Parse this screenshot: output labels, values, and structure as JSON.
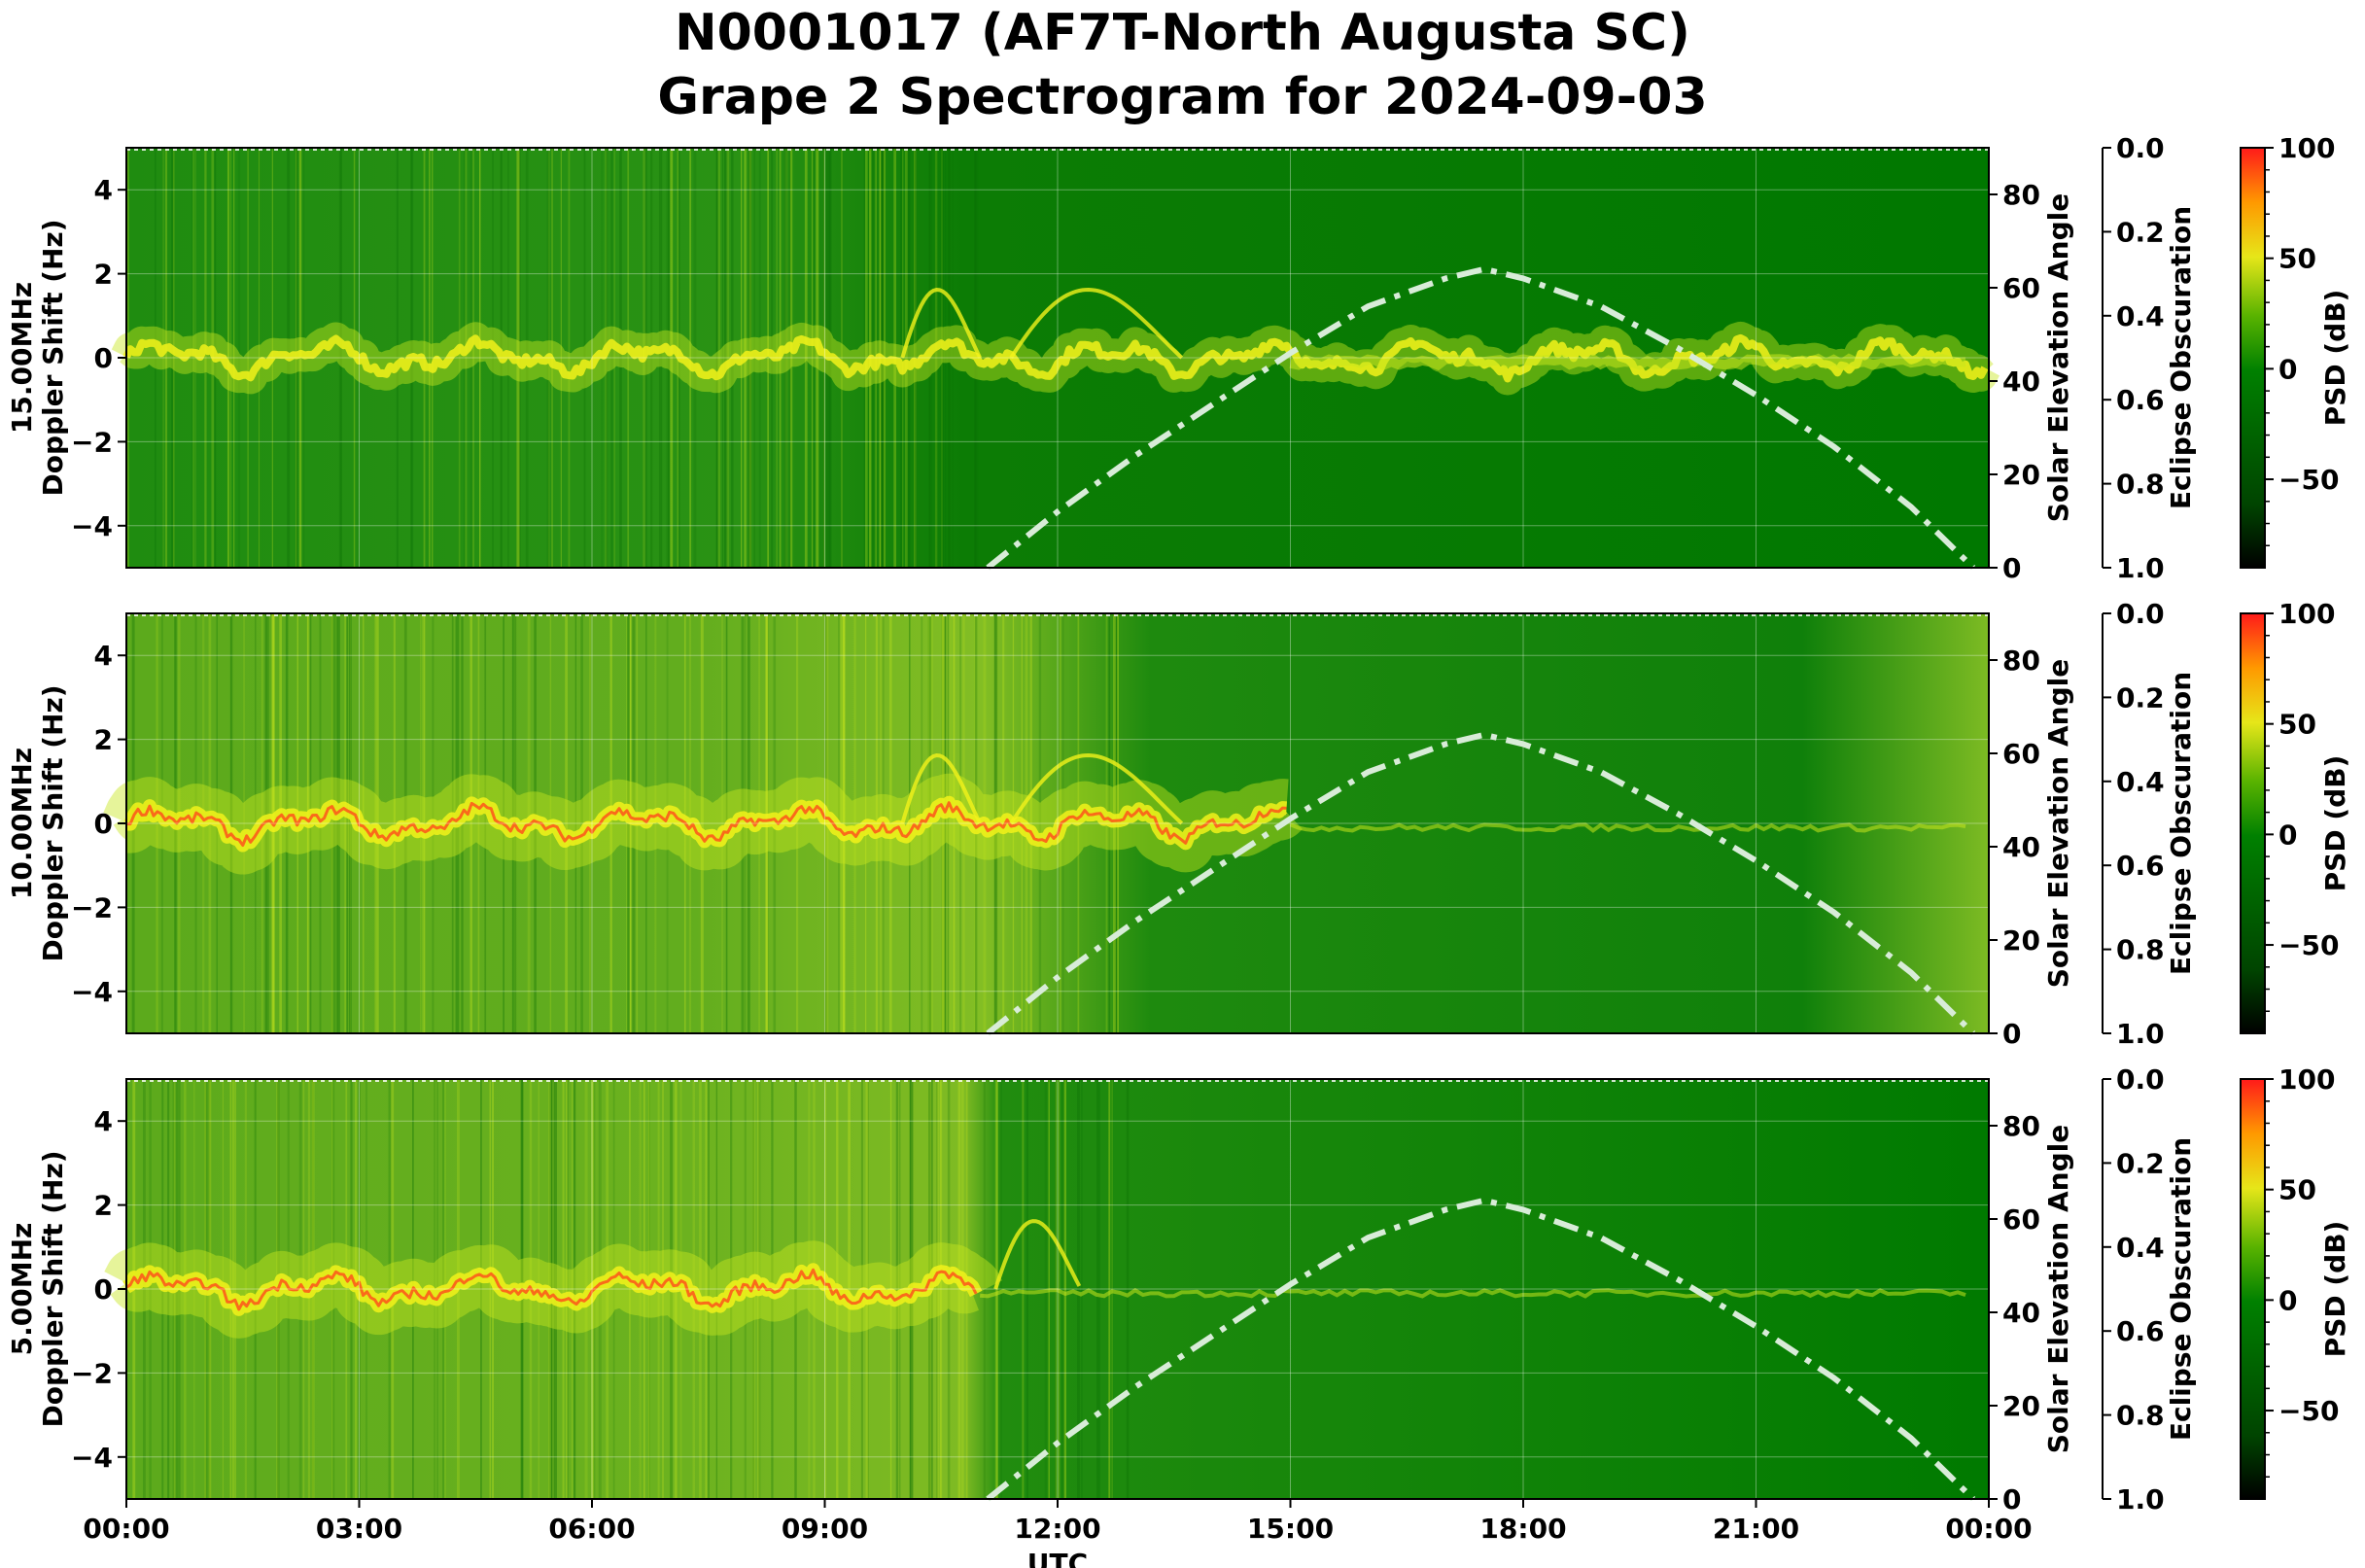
{
  "title_line1": "N0001017 (AF7T-North Augusta SC)",
  "title_line2": "Grape 2 Spectrogram for 2024-09-03",
  "chart_data": {
    "type": "heatmap",
    "xlabel": "UTC",
    "x_ticks": [
      "00:00",
      "03:00",
      "06:00",
      "09:00",
      "12:00",
      "15:00",
      "18:00",
      "21:00",
      "00:00"
    ],
    "x_range_hours": [
      0,
      24
    ],
    "doppler_ticks": [
      "4",
      "2",
      "0",
      "−2",
      "−4"
    ],
    "doppler_range_hz": [
      -5,
      5
    ],
    "solar_ticks": [
      "80",
      "60",
      "40",
      "20",
      "0"
    ],
    "solar_ylabel": "Solar Elevation Angle",
    "solar_range_deg": [
      0,
      90
    ],
    "eclipse_ticks": [
      "0.0",
      "0.2",
      "0.4",
      "0.6",
      "0.8",
      "1.0"
    ],
    "eclipse_ylabel": "Eclipse Obscuration",
    "colorbar_ticks": [
      "100",
      "50",
      "0",
      "−50"
    ],
    "colorbar_label": "PSD (dB)",
    "colorbar_range_db": [
      -90,
      100
    ],
    "grid": true,
    "solar_elevation_curve": {
      "x_hours": [
        11.1,
        12,
        13,
        14,
        15,
        16,
        17,
        17.5,
        18,
        19,
        20,
        21,
        22,
        23,
        23.8
      ],
      "y_degrees": [
        0,
        12,
        24,
        35,
        46,
        56,
        62,
        64,
        62,
        56,
        47,
        37,
        26,
        13,
        0
      ]
    },
    "panels": [
      {
        "frequency_label": "15.00MHz",
        "doppler_ylabel": "Doppler Shift (Hz)"
      },
      {
        "frequency_label": "10.00MHz",
        "doppler_ylabel": "Doppler Shift (Hz)"
      },
      {
        "frequency_label": "5.00MHz",
        "doppler_ylabel": "Doppler Shift (Hz)"
      }
    ],
    "colors": {
      "background_low": "#007a00",
      "signal_mid": "#c8e61e",
      "signal_high": "#f2f21a",
      "signal_peak": "#ff4a1a",
      "solar_curve": "#d8ecd8"
    }
  }
}
